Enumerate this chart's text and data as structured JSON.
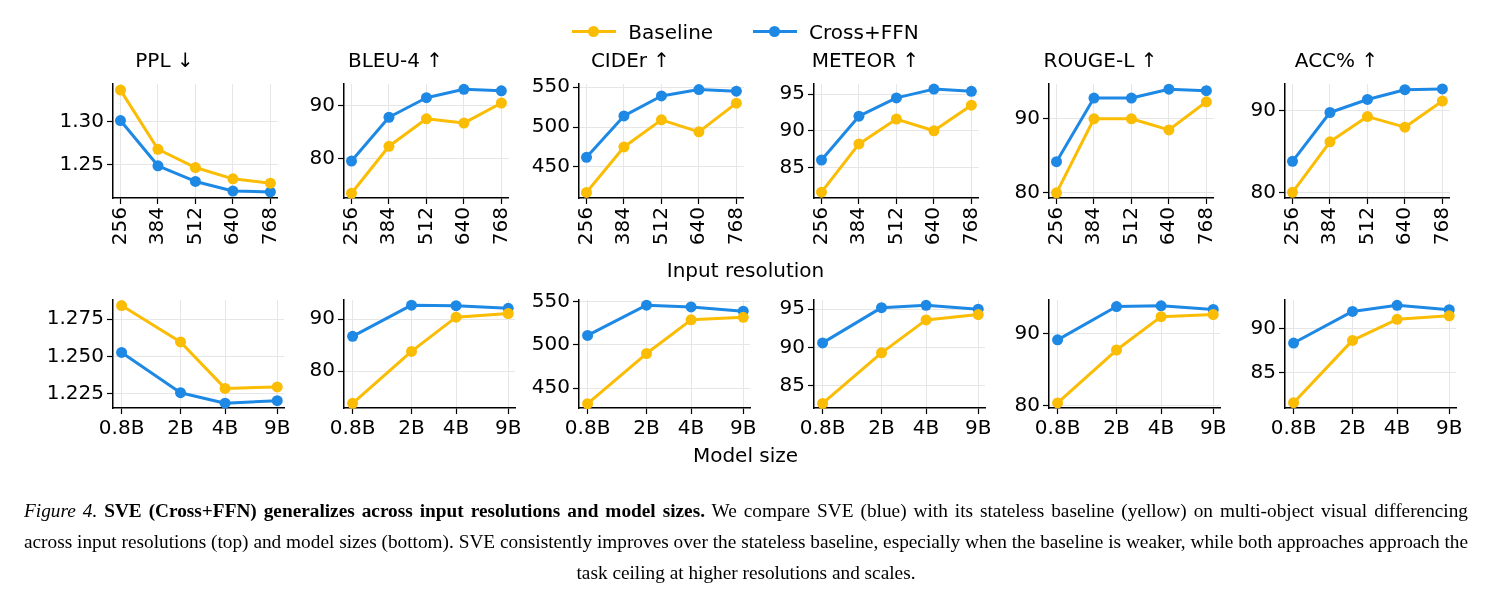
{
  "chart_data": [
    {
      "type": "line",
      "title": "PPL ↓",
      "x": [
        256,
        384,
        512,
        640,
        768
      ],
      "xlim": [
        230.4,
        793.6
      ],
      "xticks": [
        256,
        384,
        512,
        640,
        768
      ],
      "ylim": [
        1.212,
        1.343
      ],
      "yticks": [
        {
          "value": 1.25,
          "label": "1.25"
        },
        {
          "value": 1.3,
          "label": "1.30"
        }
      ],
      "grid": true,
      "marker": "circle",
      "line_style": "solid",
      "annotations": [
        "Figure 4.",
        "SVE (Cross+FFN) generalizes across input resolutions and model sizes.",
        "We compare SVE (blue) with its stateless baseline (yellow) on multi-object visual differencing across input resolutions (top) and model sizes (bottom). SVE consistently improves over the stateless baseline, especially when the baseline is weaker, while both approaches approach the task ceiling at higher resolutions and scales."
      ],
      "series": [
        {
          "color": "#fbbc04",
          "values": [
            1.336,
            1.268,
            1.247,
            1.234,
            1.229
          ]
        },
        {
          "color": "#1e88e5",
          "values": [
            1.301,
            1.249,
            1.231,
            1.22,
            1.219
          ]
        }
      ]
    },
    {
      "type": "line",
      "title": "BLEU-4 ↑",
      "x": [
        256,
        384,
        512,
        640,
        768
      ],
      "xlim": [
        230.4,
        793.6
      ],
      "xticks": [
        256,
        384,
        512,
        640,
        768
      ],
      "ylim": [
        72.5,
        94.1
      ],
      "yticks": [
        80,
        90
      ],
      "grid": true,
      "marker": "circle",
      "line_style": "solid",
      "series": [
        {
          "color": "#fbbc04",
          "values": [
            73.4,
            82.3,
            87.5,
            86.7,
            90.5
          ]
        },
        {
          "color": "#1e88e5",
          "values": [
            79.5,
            87.8,
            91.5,
            93.1,
            92.8
          ]
        }
      ]
    },
    {
      "type": "line",
      "title": "CIDEr ↑",
      "xlabel": "Input resolution",
      "legend": "top",
      "x": [
        256,
        384,
        512,
        640,
        768
      ],
      "xlim": [
        230.4,
        793.6
      ],
      "xticks": [
        256,
        384,
        512,
        640,
        768
      ],
      "ylim": [
        411,
        554
      ],
      "yticks": [
        450,
        500,
        550
      ],
      "grid": true,
      "marker": "circle",
      "line_style": "solid",
      "series": [
        {
          "name": "Baseline",
          "color": "#fbbc04",
          "values": [
            418,
            475,
            509,
            494,
            530
          ]
        },
        {
          "name": "Cross+FFN",
          "color": "#1e88e5",
          "values": [
            462,
            514,
            539,
            547,
            545
          ]
        }
      ]
    },
    {
      "type": "line",
      "title": "METEOR ↑",
      "x": [
        256,
        384,
        512,
        640,
        768
      ],
      "xlim": [
        230.4,
        793.6
      ],
      "xticks": [
        256,
        384,
        512,
        640,
        768
      ],
      "ylim": [
        80.8,
        96.4
      ],
      "yticks": [
        85,
        90,
        95
      ],
      "grid": true,
      "marker": "circle",
      "line_style": "solid",
      "series": [
        {
          "color": "#fbbc04",
          "values": [
            81.6,
            88.2,
            91.6,
            90.0,
            93.5
          ]
        },
        {
          "color": "#1e88e5",
          "values": [
            86.0,
            92.0,
            94.5,
            95.7,
            95.4
          ]
        }
      ]
    },
    {
      "type": "line",
      "title": "ROUGE-L ↑",
      "x": [
        256,
        384,
        512,
        640,
        768
      ],
      "xlim": [
        230.4,
        793.6
      ],
      "xticks": [
        256,
        384,
        512,
        640,
        768
      ],
      "ylim": [
        79.3,
        94.7
      ],
      "yticks": [
        80,
        90
      ],
      "grid": true,
      "marker": "circle",
      "line_style": "solid",
      "series": [
        {
          "color": "#fbbc04",
          "values": [
            80.0,
            90.0,
            90.0,
            88.5,
            92.3
          ]
        },
        {
          "color": "#1e88e5",
          "values": [
            84.2,
            92.8,
            92.8,
            94.0,
            93.8
          ]
        }
      ]
    },
    {
      "type": "line",
      "title": "ACC% ↑",
      "x": [
        256,
        384,
        512,
        640,
        768
      ],
      "xlim": [
        230.4,
        793.6
      ],
      "xticks": [
        256,
        384,
        512,
        640,
        768
      ],
      "ylim": [
        79.3,
        93.3
      ],
      "yticks": [
        80,
        90
      ],
      "grid": true,
      "marker": "circle",
      "line_style": "solid",
      "series": [
        {
          "color": "#fbbc04",
          "values": [
            80.0,
            86.2,
            89.3,
            88.0,
            91.2
          ]
        },
        {
          "color": "#1e88e5",
          "values": [
            83.8,
            89.8,
            91.4,
            92.6,
            92.7
          ]
        }
      ]
    },
    {
      "type": "line",
      "log": "x",
      "x": [
        0.8,
        2,
        4,
        9
      ],
      "xlim": [
        0.72,
        10
      ],
      "xticks": [
        {
          "value": 0.8,
          "label": "0.8B"
        },
        {
          "value": 2,
          "label": "2B"
        },
        {
          "value": 4,
          "label": "4B"
        },
        {
          "value": 9,
          "label": "9B"
        }
      ],
      "ylim": [
        1.2156,
        1.2877
      ],
      "yticks": [
        {
          "value": 1.225,
          "label": "1.225"
        },
        {
          "value": 1.25,
          "label": "1.250"
        },
        {
          "value": 1.275,
          "label": "1.275"
        }
      ],
      "grid": true,
      "marker": "circle",
      "line_style": "solid",
      "series": [
        {
          "color": "#fbbc04",
          "values": [
            1.284,
            1.2597,
            1.2287,
            1.2297
          ]
        },
        {
          "color": "#1e88e5",
          "values": [
            1.2527,
            1.2258,
            1.2188,
            1.2205
          ]
        }
      ]
    },
    {
      "type": "line",
      "log": "x",
      "x": [
        0.8,
        2,
        4,
        9
      ],
      "xlim": [
        0.72,
        10
      ],
      "xticks": [
        {
          "value": 0.8,
          "label": "0.8B"
        },
        {
          "value": 2,
          "label": "2B"
        },
        {
          "value": 4,
          "label": "4B"
        },
        {
          "value": 9,
          "label": "9B"
        }
      ],
      "ylim": [
        72.9,
        93.7
      ],
      "yticks": [
        80,
        90
      ],
      "grid": true,
      "marker": "circle",
      "line_style": "solid",
      "series": [
        {
          "color": "#fbbc04",
          "values": [
            73.8,
            83.8,
            90.4,
            91.1
          ]
        },
        {
          "color": "#1e88e5",
          "values": [
            86.7,
            92.7,
            92.6,
            92.1
          ]
        }
      ]
    },
    {
      "type": "line",
      "log": "x",
      "xlabel": "Model size",
      "x": [
        0.8,
        2,
        4,
        9
      ],
      "xlim": [
        0.72,
        10
      ],
      "xticks": [
        {
          "value": 0.8,
          "label": "0.8B"
        },
        {
          "value": 2,
          "label": "2B"
        },
        {
          "value": 4,
          "label": "4B"
        },
        {
          "value": 9,
          "label": "9B"
        }
      ],
      "ylim": [
        427,
        552
      ],
      "yticks": [
        450,
        500,
        550
      ],
      "grid": true,
      "marker": "circle",
      "line_style": "solid",
      "series": [
        {
          "color": "#fbbc04",
          "values": [
            432,
            490,
            529,
            532
          ]
        },
        {
          "color": "#1e88e5",
          "values": [
            511,
            546,
            544,
            539
          ]
        }
      ]
    },
    {
      "type": "line",
      "log": "x",
      "x": [
        0.8,
        2,
        4,
        9
      ],
      "xlim": [
        0.72,
        10
      ],
      "xticks": [
        {
          "value": 0.8,
          "label": "0.8B"
        },
        {
          "value": 2,
          "label": "2B"
        },
        {
          "value": 4,
          "label": "4B"
        },
        {
          "value": 9,
          "label": "9B"
        }
      ],
      "ylim": [
        82.1,
        96.2
      ],
      "yticks": [
        85,
        90,
        95
      ],
      "grid": true,
      "marker": "circle",
      "line_style": "solid",
      "series": [
        {
          "color": "#fbbc04",
          "values": [
            82.7,
            89.3,
            93.6,
            94.3
          ]
        },
        {
          "color": "#1e88e5",
          "values": [
            90.6,
            95.2,
            95.5,
            95.0
          ]
        }
      ]
    },
    {
      "type": "line",
      "log": "x",
      "x": [
        0.8,
        2,
        4,
        9
      ],
      "xlim": [
        0.72,
        10
      ],
      "xticks": [
        {
          "value": 0.8,
          "label": "0.8B"
        },
        {
          "value": 2,
          "label": "2B"
        },
        {
          "value": 4,
          "label": "4B"
        },
        {
          "value": 9,
          "label": "9B"
        }
      ],
      "ylim": [
        79.7,
        94.6
      ],
      "yticks": [
        80,
        90
      ],
      "grid": true,
      "marker": "circle",
      "line_style": "solid",
      "series": [
        {
          "color": "#fbbc04",
          "values": [
            80.4,
            87.7,
            92.3,
            92.6
          ]
        },
        {
          "color": "#1e88e5",
          "values": [
            89.1,
            93.7,
            93.8,
            93.3
          ]
        }
      ]
    },
    {
      "type": "line",
      "log": "x",
      "x": [
        0.8,
        2,
        4,
        9
      ],
      "xlim": [
        0.72,
        10
      ],
      "xticks": [
        {
          "value": 0.8,
          "label": "0.8B"
        },
        {
          "value": 2,
          "label": "2B"
        },
        {
          "value": 4,
          "label": "4B"
        },
        {
          "value": 9,
          "label": "9B"
        }
      ],
      "ylim": [
        81.0,
        93.3
      ],
      "yticks": [
        85,
        90
      ],
      "grid": true,
      "marker": "circle",
      "line_style": "solid",
      "series": [
        {
          "color": "#fbbc04",
          "values": [
            81.6,
            88.7,
            91.1,
            91.5
          ]
        },
        {
          "color": "#1e88e5",
          "values": [
            88.4,
            92.0,
            92.7,
            92.2
          ]
        }
      ]
    }
  ]
}
